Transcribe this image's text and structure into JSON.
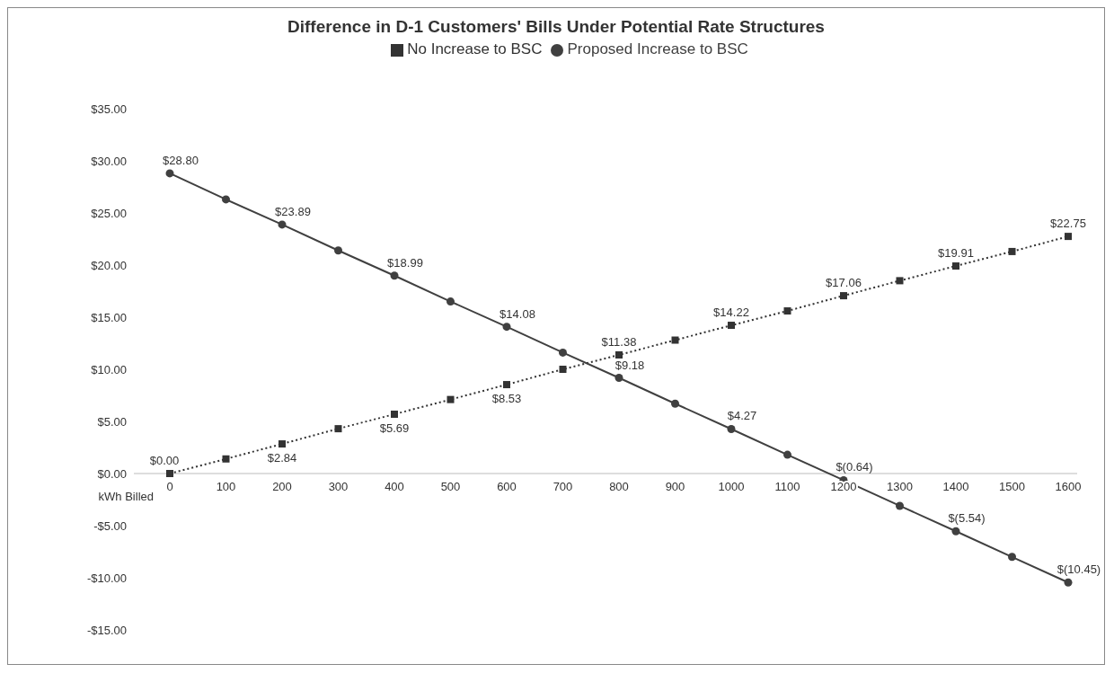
{
  "chart_data": {
    "type": "line",
    "title": "Difference in D-1 Customers' Bills Under Potential Rate Structures",
    "xlabel": "kWh Billed",
    "categories": [
      "0",
      "100",
      "200",
      "300",
      "400",
      "500",
      "600",
      "700",
      "800",
      "900",
      "1000",
      "1100",
      "1200",
      "1300",
      "1400",
      "1500",
      "1600"
    ],
    "series": [
      {
        "name": "No Increase to BSC",
        "color": "#333333",
        "marker": "square",
        "line_style": "dotted",
        "values": [
          0.0,
          1.4,
          2.84,
          4.3,
          5.69,
          7.1,
          8.53,
          10.0,
          11.38,
          12.8,
          14.22,
          15.6,
          17.06,
          18.5,
          19.91,
          21.3,
          22.75
        ],
        "value_labels": [
          "$0.00",
          null,
          "$2.84",
          null,
          "$5.69",
          null,
          "$8.53",
          null,
          "$11.38",
          null,
          "$14.22",
          null,
          "$17.06",
          null,
          "$19.91",
          null,
          "$22.75"
        ]
      },
      {
        "name": "Proposed Increase to BSC",
        "color": "#404040",
        "marker": "circle",
        "line_style": "solid",
        "values": [
          28.8,
          26.3,
          23.89,
          21.4,
          18.99,
          16.5,
          14.08,
          11.6,
          9.18,
          6.7,
          4.27,
          1.8,
          -0.64,
          -3.1,
          -5.54,
          -8.0,
          -10.45
        ],
        "value_labels": [
          "$28.80",
          null,
          "$23.89",
          null,
          "$18.99",
          null,
          "$14.08",
          null,
          "$9.18",
          null,
          "$4.27",
          null,
          "$(0.64)",
          null,
          "$(5.54)",
          null,
          "$(10.45)"
        ]
      }
    ],
    "ylim": [
      -15,
      35
    ],
    "yticks": [
      {
        "value": -15,
        "label": "-$15.00"
      },
      {
        "value": -10,
        "label": "-$10.00"
      },
      {
        "value": -5,
        "label": "-$5.00"
      },
      {
        "value": 0,
        "label": "$0.00"
      },
      {
        "value": 5,
        "label": "$5.00"
      },
      {
        "value": 10,
        "label": "$10.00"
      },
      {
        "value": 15,
        "label": "$15.00"
      },
      {
        "value": 20,
        "label": "$20.00"
      },
      {
        "value": 25,
        "label": "$25.00"
      },
      {
        "value": 30,
        "label": "$30.00"
      },
      {
        "value": 35,
        "label": "$35.00"
      }
    ],
    "grid": false,
    "legend": "top"
  }
}
